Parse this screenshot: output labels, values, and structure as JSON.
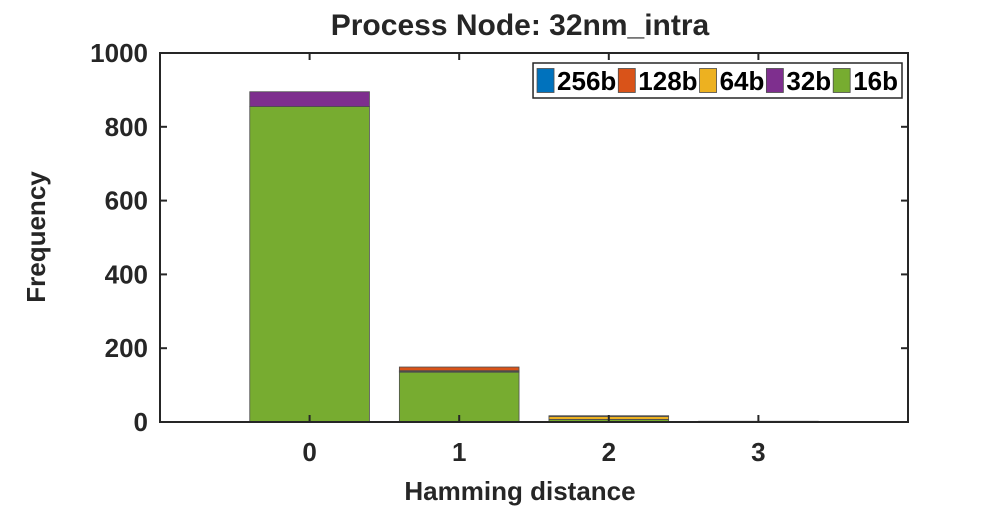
{
  "chart_data": {
    "type": "bar",
    "stacked": true,
    "title": "Process Node: 32nm_intra",
    "xlabel": "Hamming distance",
    "ylabel": "Frequency",
    "categories": [
      "0",
      "1",
      "2",
      "3"
    ],
    "xlim": [
      -1,
      4
    ],
    "ylim": [
      0,
      1000
    ],
    "yticks": [
      0,
      200,
      400,
      600,
      800,
      1000
    ],
    "grid": false,
    "legend": {
      "placement": "top-right",
      "orientation": "horizontal"
    },
    "series": [
      {
        "name": "256b",
        "color": "#0072BD",
        "values": [
          0,
          0,
          0,
          0
        ]
      },
      {
        "name": "128b",
        "color": "#D95319",
        "values": [
          0,
          10,
          2,
          0
        ]
      },
      {
        "name": "64b",
        "color": "#EDB120",
        "values": [
          0,
          2,
          8,
          1
        ]
      },
      {
        "name": "32b",
        "color": "#7E2F8E",
        "values": [
          40,
          2,
          0,
          0
        ]
      },
      {
        "name": "16b",
        "color": "#77AC30",
        "values": [
          855,
          135,
          7,
          1
        ]
      }
    ]
  }
}
